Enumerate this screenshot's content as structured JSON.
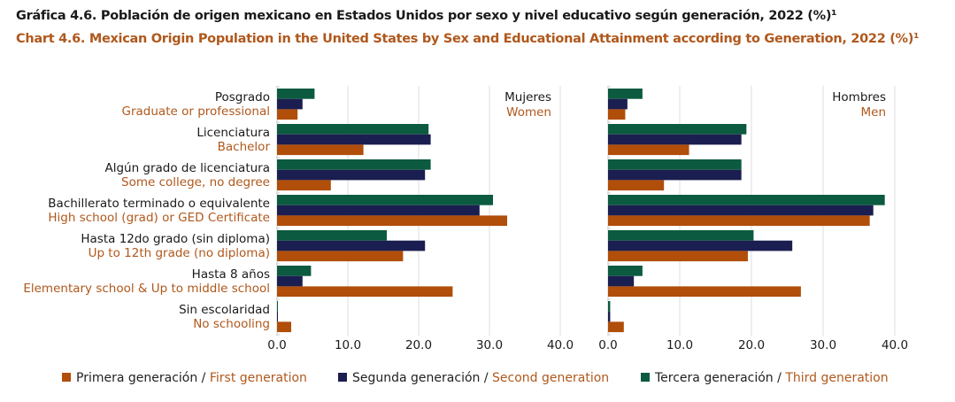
{
  "title_es": "Gráfica 4.6. Población de origen mexicano en Estados Unidos por sexo y nivel educativo según generación, 2022 (%)¹",
  "title_en": "Chart 4.6. Mexican Origin Population in the United States by Sex and Educational Attainment according to Generation, 2022 (%)¹",
  "colors": {
    "first": "#b04e0a",
    "second": "#1b1e50",
    "third": "#0c5a3f",
    "accent": "#b0581c"
  },
  "chart_data": {
    "type": "bar",
    "orientation": "horizontal",
    "categories_es": [
      "Posgrado",
      "Licenciatura",
      "Algún grado de licenciatura",
      "Bachillerato terminado o equivalente",
      "Hasta 12do grado (sin diploma)",
      "Hasta 8 años",
      "Sin escolaridad"
    ],
    "categories_en": [
      "Graduate or professional",
      "Bachelor",
      "Some college, no degree",
      "High school (grad) or GED Certificate",
      "Up to 12th grade (no diploma)",
      "Elementary school & Up to middle school",
      "No schooling"
    ],
    "xlim": [
      0,
      40
    ],
    "xticks": [
      "0.0",
      "10.0",
      "20.0",
      "30.0",
      "40.0"
    ],
    "legend": [
      {
        "es": "Primera generación",
        "en": "First generation"
      },
      {
        "es": "Segunda generación",
        "en": "Second generation"
      },
      {
        "es": "Tercera generación",
        "en": "Third generation"
      }
    ],
    "panels": [
      {
        "title_es": "Mujeres",
        "title_en": "Women",
        "series": [
          {
            "name": "Primera generación",
            "values": [
              2.9,
              12.2,
              7.6,
              32.5,
              17.8,
              24.8,
              2.0
            ]
          },
          {
            "name": "Segunda generación",
            "values": [
              3.6,
              21.7,
              20.9,
              28.6,
              20.9,
              3.6,
              0.1
            ]
          },
          {
            "name": "Tercera generación",
            "values": [
              5.3,
              21.4,
              21.7,
              30.5,
              15.5,
              4.8,
              0.1
            ]
          }
        ]
      },
      {
        "title_es": "Hombres",
        "title_en": "Men",
        "series": [
          {
            "name": "Primera generación",
            "values": [
              2.4,
              11.3,
              7.8,
              36.5,
              19.5,
              26.9,
              2.2
            ]
          },
          {
            "name": "Segunda generación",
            "values": [
              2.7,
              18.6,
              18.6,
              37.0,
              25.7,
              3.6,
              0.3
            ]
          },
          {
            "name": "Tercera generación",
            "values": [
              4.8,
              19.3,
              18.6,
              38.6,
              20.3,
              4.8,
              0.3
            ]
          }
        ]
      }
    ]
  }
}
